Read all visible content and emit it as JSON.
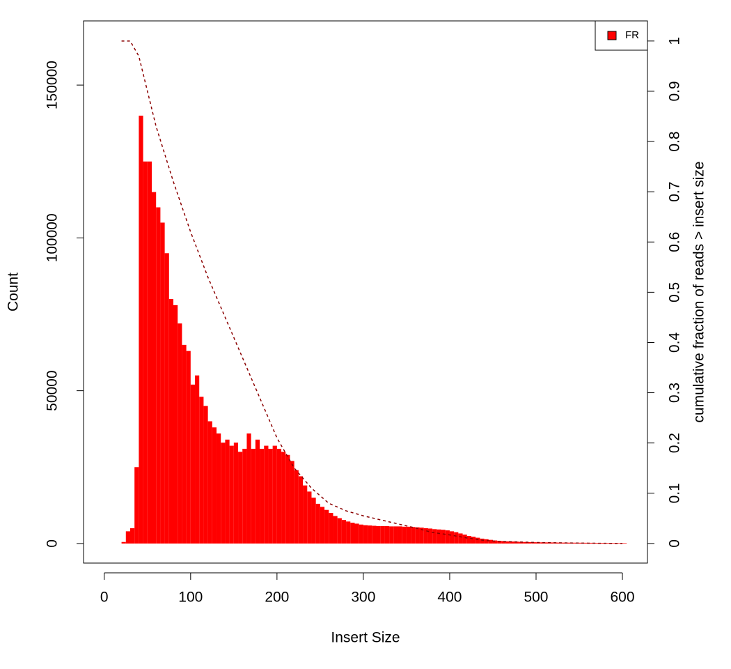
{
  "chart_data": {
    "type": "histogram",
    "xlabel": "Insert Size",
    "ylabel": "Count",
    "y2label": "cumulative fraction of reads > insert size",
    "xlim": [
      -24,
      629
    ],
    "ylim": [
      -6400,
      171000
    ],
    "y2lim": [
      -0.039,
      1.04
    ],
    "xticks": [
      0,
      100,
      200,
      300,
      400,
      500,
      600
    ],
    "yticks": [
      0,
      50000,
      100000,
      150000
    ],
    "y2ticks": [
      0,
      0.1,
      0.2,
      0.3,
      0.4,
      0.5,
      0.6,
      0.7,
      0.8,
      0.9,
      1
    ],
    "legend": "top-right",
    "bins": [
      20,
      25,
      30,
      35,
      40,
      45,
      50,
      55,
      60,
      65,
      70,
      75,
      80,
      85,
      90,
      95,
      100,
      105,
      110,
      115,
      120,
      125,
      130,
      135,
      140,
      145,
      150,
      155,
      160,
      165,
      170,
      175,
      180,
      185,
      190,
      195,
      200,
      205,
      210,
      215,
      220,
      225,
      230,
      235,
      240,
      245,
      250,
      255,
      260,
      265,
      270,
      275,
      280,
      285,
      290,
      295,
      300,
      305,
      310,
      315,
      320,
      325,
      330,
      335,
      340,
      345,
      350,
      355,
      360,
      365,
      370,
      375,
      380,
      385,
      390,
      395,
      400,
      405,
      410,
      415,
      420,
      425,
      430,
      435,
      440,
      445,
      450,
      455,
      460,
      465,
      470,
      475,
      480,
      485,
      490,
      495,
      500,
      505,
      510,
      515,
      520,
      525,
      530,
      535,
      540,
      545,
      550,
      555,
      560,
      565,
      570,
      575,
      580,
      585,
      590,
      595,
      600,
      605
    ],
    "series": [
      {
        "name": "FR",
        "color": "#ff0000",
        "values": [
          500,
          4000,
          5000,
          25000,
          140000,
          125000,
          125000,
          115000,
          110000,
          105000,
          95000,
          80000,
          78000,
          72000,
          65000,
          63000,
          52000,
          55000,
          48000,
          45000,
          40000,
          38000,
          36000,
          33000,
          34000,
          32000,
          33000,
          30000,
          31000,
          36000,
          31000,
          34000,
          31000,
          32000,
          31000,
          32000,
          31000,
          30000,
          29000,
          27000,
          24000,
          22000,
          19000,
          17000,
          15000,
          13000,
          12000,
          11000,
          10000,
          9000,
          8300,
          7700,
          7200,
          6800,
          6500,
          6200,
          6000,
          5900,
          5800,
          5700,
          5700,
          5700,
          5600,
          5600,
          5600,
          5500,
          5500,
          5400,
          5300,
          5200,
          5000,
          4900,
          4700,
          4600,
          4500,
          4300,
          4000,
          3700,
          3300,
          2900,
          2500,
          2200,
          1900,
          1600,
          1400,
          1200,
          1000,
          900,
          800,
          700,
          650,
          600,
          550,
          500,
          450,
          420,
          400,
          380,
          360,
          340,
          320,
          300,
          290,
          280,
          270,
          260,
          250,
          240,
          230,
          220,
          210,
          200,
          190,
          180,
          170,
          160,
          150
        ]
      }
    ],
    "cumulative": {
      "axis": "y2",
      "color": "#8b0000",
      "dashed": true,
      "x": [
        20,
        30,
        40,
        60,
        80,
        100,
        120,
        140,
        160,
        180,
        200,
        220,
        240,
        260,
        280,
        300,
        320,
        340,
        360,
        380,
        400,
        420,
        440,
        460,
        480,
        500,
        520,
        540,
        560,
        580,
        600
      ],
      "values": [
        1,
        1,
        0.97,
        0.83,
        0.72,
        0.62,
        0.53,
        0.45,
        0.37,
        0.29,
        0.21,
        0.15,
        0.11,
        0.08,
        0.065,
        0.055,
        0.047,
        0.039,
        0.031,
        0.022,
        0.017,
        0.011,
        0.006,
        0.004,
        0.003,
        0.002,
        0.0015,
        0.001,
        0.0006,
        0.0003,
        0
      ]
    }
  }
}
